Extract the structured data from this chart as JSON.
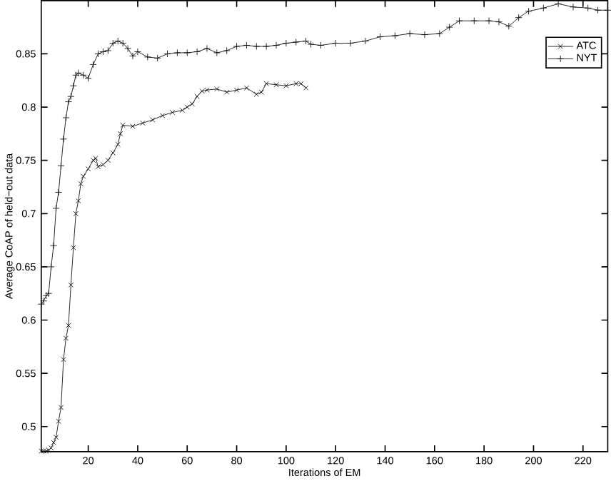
{
  "chart_data": {
    "type": "line",
    "xlabel": "Iterations of EM",
    "ylabel": "Average CoAP of held−out data",
    "xlim": [
      1,
      230
    ],
    "ylim": [
      0.4765,
      0.9
    ],
    "xticks": [
      20,
      40,
      60,
      80,
      100,
      120,
      140,
      160,
      180,
      200,
      220
    ],
    "yticks": [
      0.5,
      0.55,
      0.6,
      0.65,
      0.7,
      0.75,
      0.8,
      0.85
    ],
    "legend": "top right",
    "grid": false,
    "line_style": "solid",
    "series": [
      {
        "name": "ATC",
        "color": "#000000",
        "marker": "cross",
        "x": [
          1,
          2,
          3,
          4,
          5,
          6,
          7,
          8,
          9,
          10,
          11,
          12,
          13,
          14,
          15,
          16,
          17,
          18,
          20,
          22,
          23,
          24,
          26,
          28,
          30,
          32,
          33,
          34,
          38,
          42,
          46,
          50,
          54,
          58,
          60,
          62,
          64,
          66,
          68,
          72,
          76,
          80,
          84,
          88,
          90,
          92,
          96,
          100,
          104,
          106,
          108
        ],
        "values": [
          0.477,
          0.477,
          0.477,
          0.478,
          0.48,
          0.485,
          0.49,
          0.505,
          0.518,
          0.563,
          0.583,
          0.595,
          0.633,
          0.668,
          0.7,
          0.712,
          0.728,
          0.735,
          0.742,
          0.75,
          0.752,
          0.744,
          0.746,
          0.75,
          0.757,
          0.765,
          0.775,
          0.783,
          0.782,
          0.785,
          0.788,
          0.792,
          0.795,
          0.797,
          0.8,
          0.803,
          0.81,
          0.815,
          0.816,
          0.817,
          0.814,
          0.816,
          0.818,
          0.812,
          0.814,
          0.822,
          0.821,
          0.82,
          0.822,
          0.822,
          0.818
        ]
      },
      {
        "name": "NYT",
        "color": "#000000",
        "marker": "plus",
        "x": [
          1,
          2,
          3,
          4,
          5,
          6,
          7,
          8,
          9,
          10,
          11,
          12,
          13,
          14,
          15,
          16,
          18,
          20,
          22,
          24,
          26,
          28,
          30,
          32,
          34,
          36,
          38,
          40,
          44,
          48,
          52,
          56,
          60,
          64,
          68,
          72,
          76,
          80,
          84,
          88,
          92,
          96,
          100,
          104,
          108,
          110,
          114,
          120,
          126,
          132,
          138,
          144,
          150,
          156,
          162,
          166,
          170,
          176,
          182,
          186,
          190,
          194,
          198,
          204,
          210,
          216,
          222,
          226,
          230
        ],
        "values": [
          0.615,
          0.618,
          0.623,
          0.625,
          0.65,
          0.67,
          0.705,
          0.72,
          0.745,
          0.77,
          0.79,
          0.805,
          0.81,
          0.82,
          0.83,
          0.832,
          0.83,
          0.827,
          0.84,
          0.85,
          0.852,
          0.853,
          0.86,
          0.862,
          0.86,
          0.855,
          0.848,
          0.852,
          0.847,
          0.846,
          0.85,
          0.851,
          0.851,
          0.852,
          0.855,
          0.851,
          0.853,
          0.857,
          0.858,
          0.857,
          0.857,
          0.858,
          0.86,
          0.861,
          0.862,
          0.859,
          0.858,
          0.86,
          0.86,
          0.862,
          0.866,
          0.867,
          0.869,
          0.868,
          0.869,
          0.875,
          0.881,
          0.881,
          0.881,
          0.88,
          0.876,
          0.884,
          0.89,
          0.893,
          0.897,
          0.894,
          0.893,
          0.891,
          0.891
        ]
      }
    ]
  }
}
